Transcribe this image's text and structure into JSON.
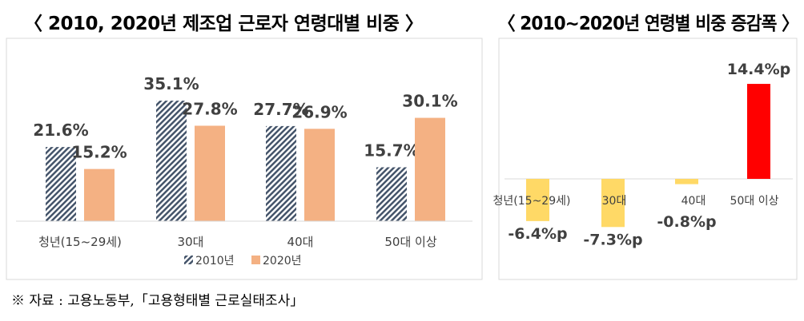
{
  "chart_data": [
    {
      "type": "bar",
      "title": "〈 2010, 2020년 제조업 근로자 연령대별 비중 〉",
      "categories": [
        "청년(15~29세)",
        "30대",
        "40대",
        "50대 이상"
      ],
      "series": [
        {
          "name": "2010년",
          "values": [
            21.6,
            35.1,
            27.7,
            15.7
          ],
          "labels": [
            "21.6%",
            "35.1%",
            "27.7%",
            "15.7%"
          ],
          "color": "#44546a",
          "pattern": "diagonal-hatch"
        },
        {
          "name": "2020년",
          "values": [
            15.2,
            27.8,
            26.9,
            30.1
          ],
          "labels": [
            "15.2%",
            "27.8%",
            "26.9%",
            "30.1%"
          ],
          "color": "#f4b183"
        }
      ],
      "ylim": [
        0,
        40
      ],
      "legend": "bottom",
      "grid": false
    },
    {
      "type": "bar",
      "title": "〈 2010~2020년 연령별 비중 증감폭 〉",
      "categories": [
        "청년(15~29세)",
        "30대",
        "40대",
        "50대 이상"
      ],
      "values": [
        -6.4,
        -7.3,
        -0.8,
        14.4
      ],
      "labels": [
        "-6.4%p",
        "-7.3%p",
        "-0.8%p",
        "14.4%p"
      ],
      "colors": [
        "#ffd966",
        "#ffd966",
        "#ffd966",
        "#ff0000"
      ],
      "ylim": [
        -10,
        16
      ],
      "grid": false
    }
  ],
  "source": "※ 자료 : 고용노동부,「고용형태별 근로실태조사」"
}
